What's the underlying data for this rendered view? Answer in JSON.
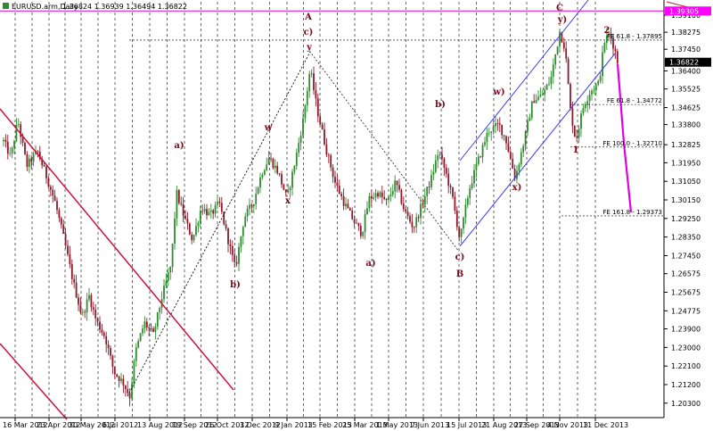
{
  "chart_data": {
    "type": "candlestick",
    "title": "EURUSD.arm,Daily",
    "ohlc_text": "1.36824 1.36939 1.36494 1.36822",
    "ylim": [
      1.196,
      1.3975
    ],
    "y_ticks": [
      "1.39100",
      "1.38275",
      "1.37450",
      "1.36400",
      "1.35525",
      "1.34625",
      "1.33800",
      "1.32825",
      "1.31950",
      "1.31050",
      "1.30150",
      "1.29250",
      "1.28350",
      "1.27450",
      "1.26575",
      "1.25675",
      "1.24775",
      "1.23900",
      "1.23000",
      "1.22100",
      "1.21200",
      "1.20300"
    ],
    "x_ticks": [
      "16 Mar 2012",
      "23 Apr 2012",
      "30 May 2012",
      "6 Jul 2012",
      "13 Aug 2012",
      "19 Sep 2012",
      "26 Oct 2012",
      "3 Dec 2012",
      "9 Jan 2013",
      "15 Feb 2013",
      "25 Mar 2013",
      "1 May 2013",
      "7 Jun 2013",
      "15 Jul 2013",
      "21 Aug 2013",
      "27 Sep 2013",
      "4 Nov 2013",
      "11 Dec 2013"
    ],
    "price_badges": [
      {
        "text": "1.39305",
        "value": 1.39305,
        "color": "#ff00ff"
      },
      {
        "text": "1.36822",
        "value": 1.36822,
        "color": "#000000"
      }
    ],
    "fib_levels": [
      {
        "text": "FE 61.8 - 1.37895",
        "value": 1.37895
      },
      {
        "text": "FE 61.8 - 1.34772",
        "value": 1.34772
      },
      {
        "text": "FE 100.0 - 1.32710",
        "value": 1.3271
      },
      {
        "text": "FE 161.8 - 1.29373",
        "value": 1.29373
      }
    ],
    "wave_labels": [
      "A",
      "c)",
      "y",
      "w",
      "a)",
      "x",
      "b)",
      "a)",
      "b)",
      "c)",
      "B",
      "w)",
      "x)",
      "C",
      "y)",
      "2",
      "1"
    ],
    "series_color_up": "#2e8b2e",
    "series_color_down": "#8b1a2a",
    "grid": true,
    "grid_style": "dashed vertical",
    "projection_color": "#e000e0",
    "channel_color": "#3a3aff",
    "downtrend_color": "#d0123a"
  }
}
